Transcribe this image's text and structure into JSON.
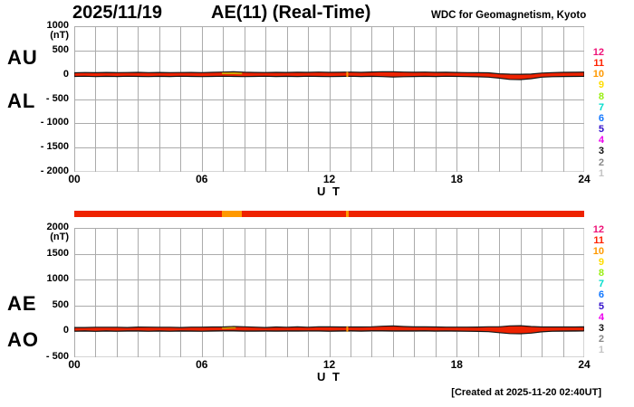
{
  "header": {
    "date": "2025/11/19",
    "title": "AE(11) (Real-Time)",
    "credit": "WDC for Geomagnetism, Kyoto"
  },
  "footer": {
    "created": "[Created at 2025-11-20 02:40UT]"
  },
  "legend": {
    "description": "station count color scale",
    "items": [
      {
        "label": "12",
        "color": "#ee1177"
      },
      {
        "label": "11",
        "color": "#ff2200"
      },
      {
        "label": "10",
        "color": "#ff9900"
      },
      {
        "label": "9",
        "color": "#ffdd00"
      },
      {
        "label": "8",
        "color": "#99ee11"
      },
      {
        "label": "7",
        "color": "#00ddcc"
      },
      {
        "label": "6",
        "color": "#1177ff"
      },
      {
        "label": "5",
        "color": "#3311cc"
      },
      {
        "label": "4",
        "color": "#ee00ee"
      },
      {
        "label": "3",
        "color": "#111111"
      },
      {
        "label": "2",
        "color": "#888888"
      },
      {
        "label": "1",
        "color": "#c4c4c4"
      }
    ]
  },
  "colors": {
    "trace_fill": "#ee2200",
    "trace_edge": "#151515",
    "grid": "#ababab",
    "bar_base": "#ee2200",
    "bar_highlight": "#ff9900"
  },
  "chart_data": {
    "type": "line",
    "title": "2025/11/19 AE(11) (Real-Time)",
    "xlabel": "U T",
    "x_range": [
      0,
      24
    ],
    "x_tick_values": [
      0,
      6,
      12,
      18,
      24
    ],
    "x_ticks": [
      "00",
      "06",
      "12",
      "18",
      "24"
    ],
    "grid": true,
    "x": [
      0,
      0.5,
      1,
      1.5,
      2,
      2.5,
      3,
      3.5,
      4,
      4.5,
      5,
      5.5,
      6,
      6.5,
      7,
      7.5,
      8,
      8.5,
      9,
      9.5,
      10,
      10.5,
      11,
      11.5,
      12,
      12.5,
      13,
      13.5,
      14,
      14.5,
      15,
      15.5,
      16,
      16.5,
      17,
      17.5,
      18,
      18.5,
      19,
      19.5,
      20,
      20.5,
      21,
      21.5,
      22,
      22.5,
      23,
      23.5,
      24
    ],
    "panels": [
      {
        "id": "au-al",
        "labels_left": [
          "AU",
          "AL"
        ],
        "unit": "(nT)",
        "ylim": [
          -2000,
          1000
        ],
        "y_ticks": [
          {
            "value": 1000,
            "label": "1000"
          },
          {
            "value": 500,
            "label": "500"
          },
          {
            "value": 0,
            "label": "0"
          },
          {
            "value": -500,
            "label": "- 500"
          },
          {
            "value": -1000,
            "label": "- 1000"
          },
          {
            "value": -1500,
            "label": "- 1500"
          },
          {
            "value": -2000,
            "label": "- 2000"
          }
        ],
        "series": [
          {
            "name": "AU (upper envelope, nT)",
            "values": [
              40,
              46,
              42,
              48,
              44,
              46,
              50,
              45,
              48,
              44,
              46,
              48,
              45,
              50,
              55,
              60,
              52,
              48,
              46,
              50,
              48,
              52,
              50,
              55,
              50,
              52,
              55,
              50,
              58,
              62,
              60,
              55,
              52,
              55,
              50,
              52,
              48,
              45,
              42,
              40,
              20,
              12,
              10,
              15,
              35,
              45,
              50,
              52,
              55
            ]
          },
          {
            "name": "AL (lower envelope, nT)",
            "values": [
              -35,
              -30,
              -38,
              -32,
              -36,
              -30,
              -34,
              -38,
              -32,
              -36,
              -30,
              -34,
              -38,
              -35,
              -30,
              -34,
              -38,
              -34,
              -30,
              -36,
              -32,
              -36,
              -30,
              -35,
              -38,
              -34,
              -30,
              -36,
              -32,
              -38,
              -45,
              -40,
              -36,
              -32,
              -36,
              -30,
              -34,
              -38,
              -42,
              -50,
              -70,
              -95,
              -100,
              -80,
              -50,
              -40,
              -36,
              -34,
              -32
            ]
          }
        ],
        "overlays": [
          {
            "type": "band_highlight",
            "x_start": 6.95,
            "x_end": 7.9,
            "color": "#d2a400"
          },
          {
            "type": "vline",
            "x": 12.85,
            "v_from": -45,
            "v_to": 58,
            "color": "#ff9900"
          }
        ]
      },
      {
        "id": "ae-ao",
        "labels_left": [
          "AE",
          "AO"
        ],
        "unit": "(nT)",
        "ylim": [
          -500,
          2000
        ],
        "y_ticks": [
          {
            "value": 2000,
            "label": "2000"
          },
          {
            "value": 1500,
            "label": "1500"
          },
          {
            "value": 1000,
            "label": "1000"
          },
          {
            "value": 500,
            "label": "500"
          },
          {
            "value": 0,
            "label": "0"
          },
          {
            "value": -500,
            "label": "- 500"
          }
        ],
        "series": [
          {
            "name": "AE (nT)",
            "values": [
              75,
              76,
              80,
              80,
              80,
              76,
              84,
              83,
              80,
              80,
              76,
              82,
              83,
              85,
              85,
              94,
              90,
              82,
              76,
              86,
              80,
              88,
              80,
              90,
              88,
              86,
              85,
              86,
              90,
              100,
              105,
              95,
              88,
              87,
              86,
              82,
              82,
              83,
              84,
              90,
              90,
              107,
              110,
              95,
              85,
              85,
              86,
              86,
              87
            ]
          },
          {
            "name": "AO (nT)",
            "values": [
              3,
              8,
              2,
              8,
              4,
              8,
              8,
              4,
              8,
              4,
              8,
              7,
              4,
              8,
              13,
              13,
              7,
              7,
              8,
              7,
              8,
              8,
              10,
              10,
              6,
              9,
              13,
              7,
              13,
              12,
              8,
              8,
              8,
              12,
              7,
              11,
              7,
              4,
              0,
              -5,
              -25,
              -42,
              -45,
              -33,
              -8,
              3,
              7,
              9,
              12
            ]
          }
        ],
        "overlays": [
          {
            "type": "band_highlight",
            "x_start": 6.95,
            "x_end": 7.6,
            "color": "#d2a400"
          },
          {
            "type": "vline",
            "x": 12.85,
            "v_from": -5,
            "v_to": 92,
            "color": "#ff9900"
          }
        ]
      }
    ],
    "availability_bar": {
      "base_color": "#ee2200",
      "segments": [
        {
          "x_start": 6.95,
          "x_end": 7.9,
          "color": "#ff9900"
        },
        {
          "x_start": 12.78,
          "x_end": 12.92,
          "color": "#ff9900"
        }
      ]
    }
  }
}
